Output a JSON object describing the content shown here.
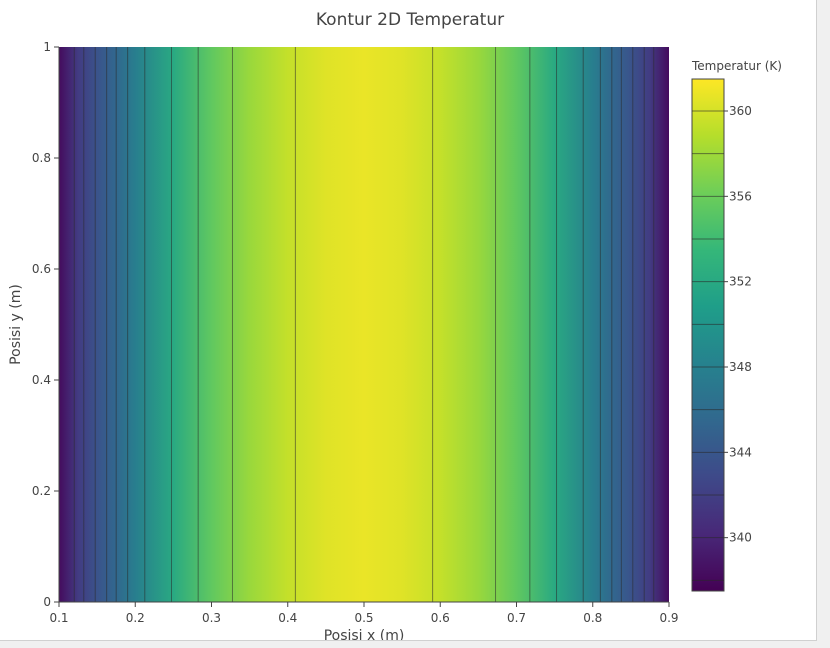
{
  "chart_data": {
    "type": "heatmap",
    "subtype": "contour",
    "title": "Kontur 2D Temperatur",
    "xlabel": "Posisi x (m)",
    "ylabel": "Posisi y (m)",
    "xlim": [
      0.1,
      0.9
    ],
    "ylim": [
      0,
      1
    ],
    "x_ticks": [
      0.1,
      0.2,
      0.3,
      0.4,
      0.5,
      0.6,
      0.7,
      0.8,
      0.9
    ],
    "x_tick_labels": [
      "0.1",
      "0.2",
      "0.3",
      "0.4",
      "0.5",
      "0.6",
      "0.7",
      "0.8",
      "0.9"
    ],
    "y_ticks": [
      0,
      0.2,
      0.4,
      0.6,
      0.8,
      1
    ],
    "y_tick_labels": [
      "0",
      "0.2",
      "0.4",
      "0.6",
      "0.8",
      "1"
    ],
    "field": "temperature varies with x only; maximum at x = 0.5, symmetric about the center",
    "profile": {
      "x": [
        0.1,
        0.125,
        0.15,
        0.175,
        0.2,
        0.25,
        0.3,
        0.35,
        0.4,
        0.45,
        0.5,
        0.55,
        0.6,
        0.65,
        0.7,
        0.75,
        0.8,
        0.825,
        0.85,
        0.875,
        0.9
      ],
      "temperature": [
        338.2,
        341.7,
        343.7,
        345.5,
        347.8,
        352.0,
        355.5,
        357.8,
        359.4,
        360.4,
        360.8,
        360.4,
        359.4,
        357.8,
        355.5,
        352.0,
        347.8,
        345.5,
        343.7,
        341.7,
        338.2
      ]
    },
    "contour_lines_x": [
      0.12,
      0.1325,
      0.1475,
      0.1625,
      0.175,
      0.19,
      0.2125,
      0.2475,
      0.2825,
      0.3275,
      0.41,
      0.59,
      0.6725,
      0.7175,
      0.7525,
      0.7875,
      0.81,
      0.825,
      0.8375,
      0.8525,
      0.8675,
      0.88
    ],
    "colorbar": {
      "title": "Temperatur (K)",
      "range": [
        337.5,
        361.5
      ],
      "ticks": [
        340,
        344,
        348,
        352,
        356,
        360
      ],
      "tick_labels": [
        "340",
        "344",
        "348",
        "352",
        "356",
        "360"
      ],
      "level_step": 2,
      "colorscale": "Viridis",
      "placement": "right"
    },
    "grid": false,
    "colors": [
      "#440154",
      "#482878",
      "#3e4989",
      "#31688e",
      "#26828e",
      "#1f9e89",
      "#35b779",
      "#6ece58",
      "#b5de2b",
      "#fde725"
    ]
  }
}
